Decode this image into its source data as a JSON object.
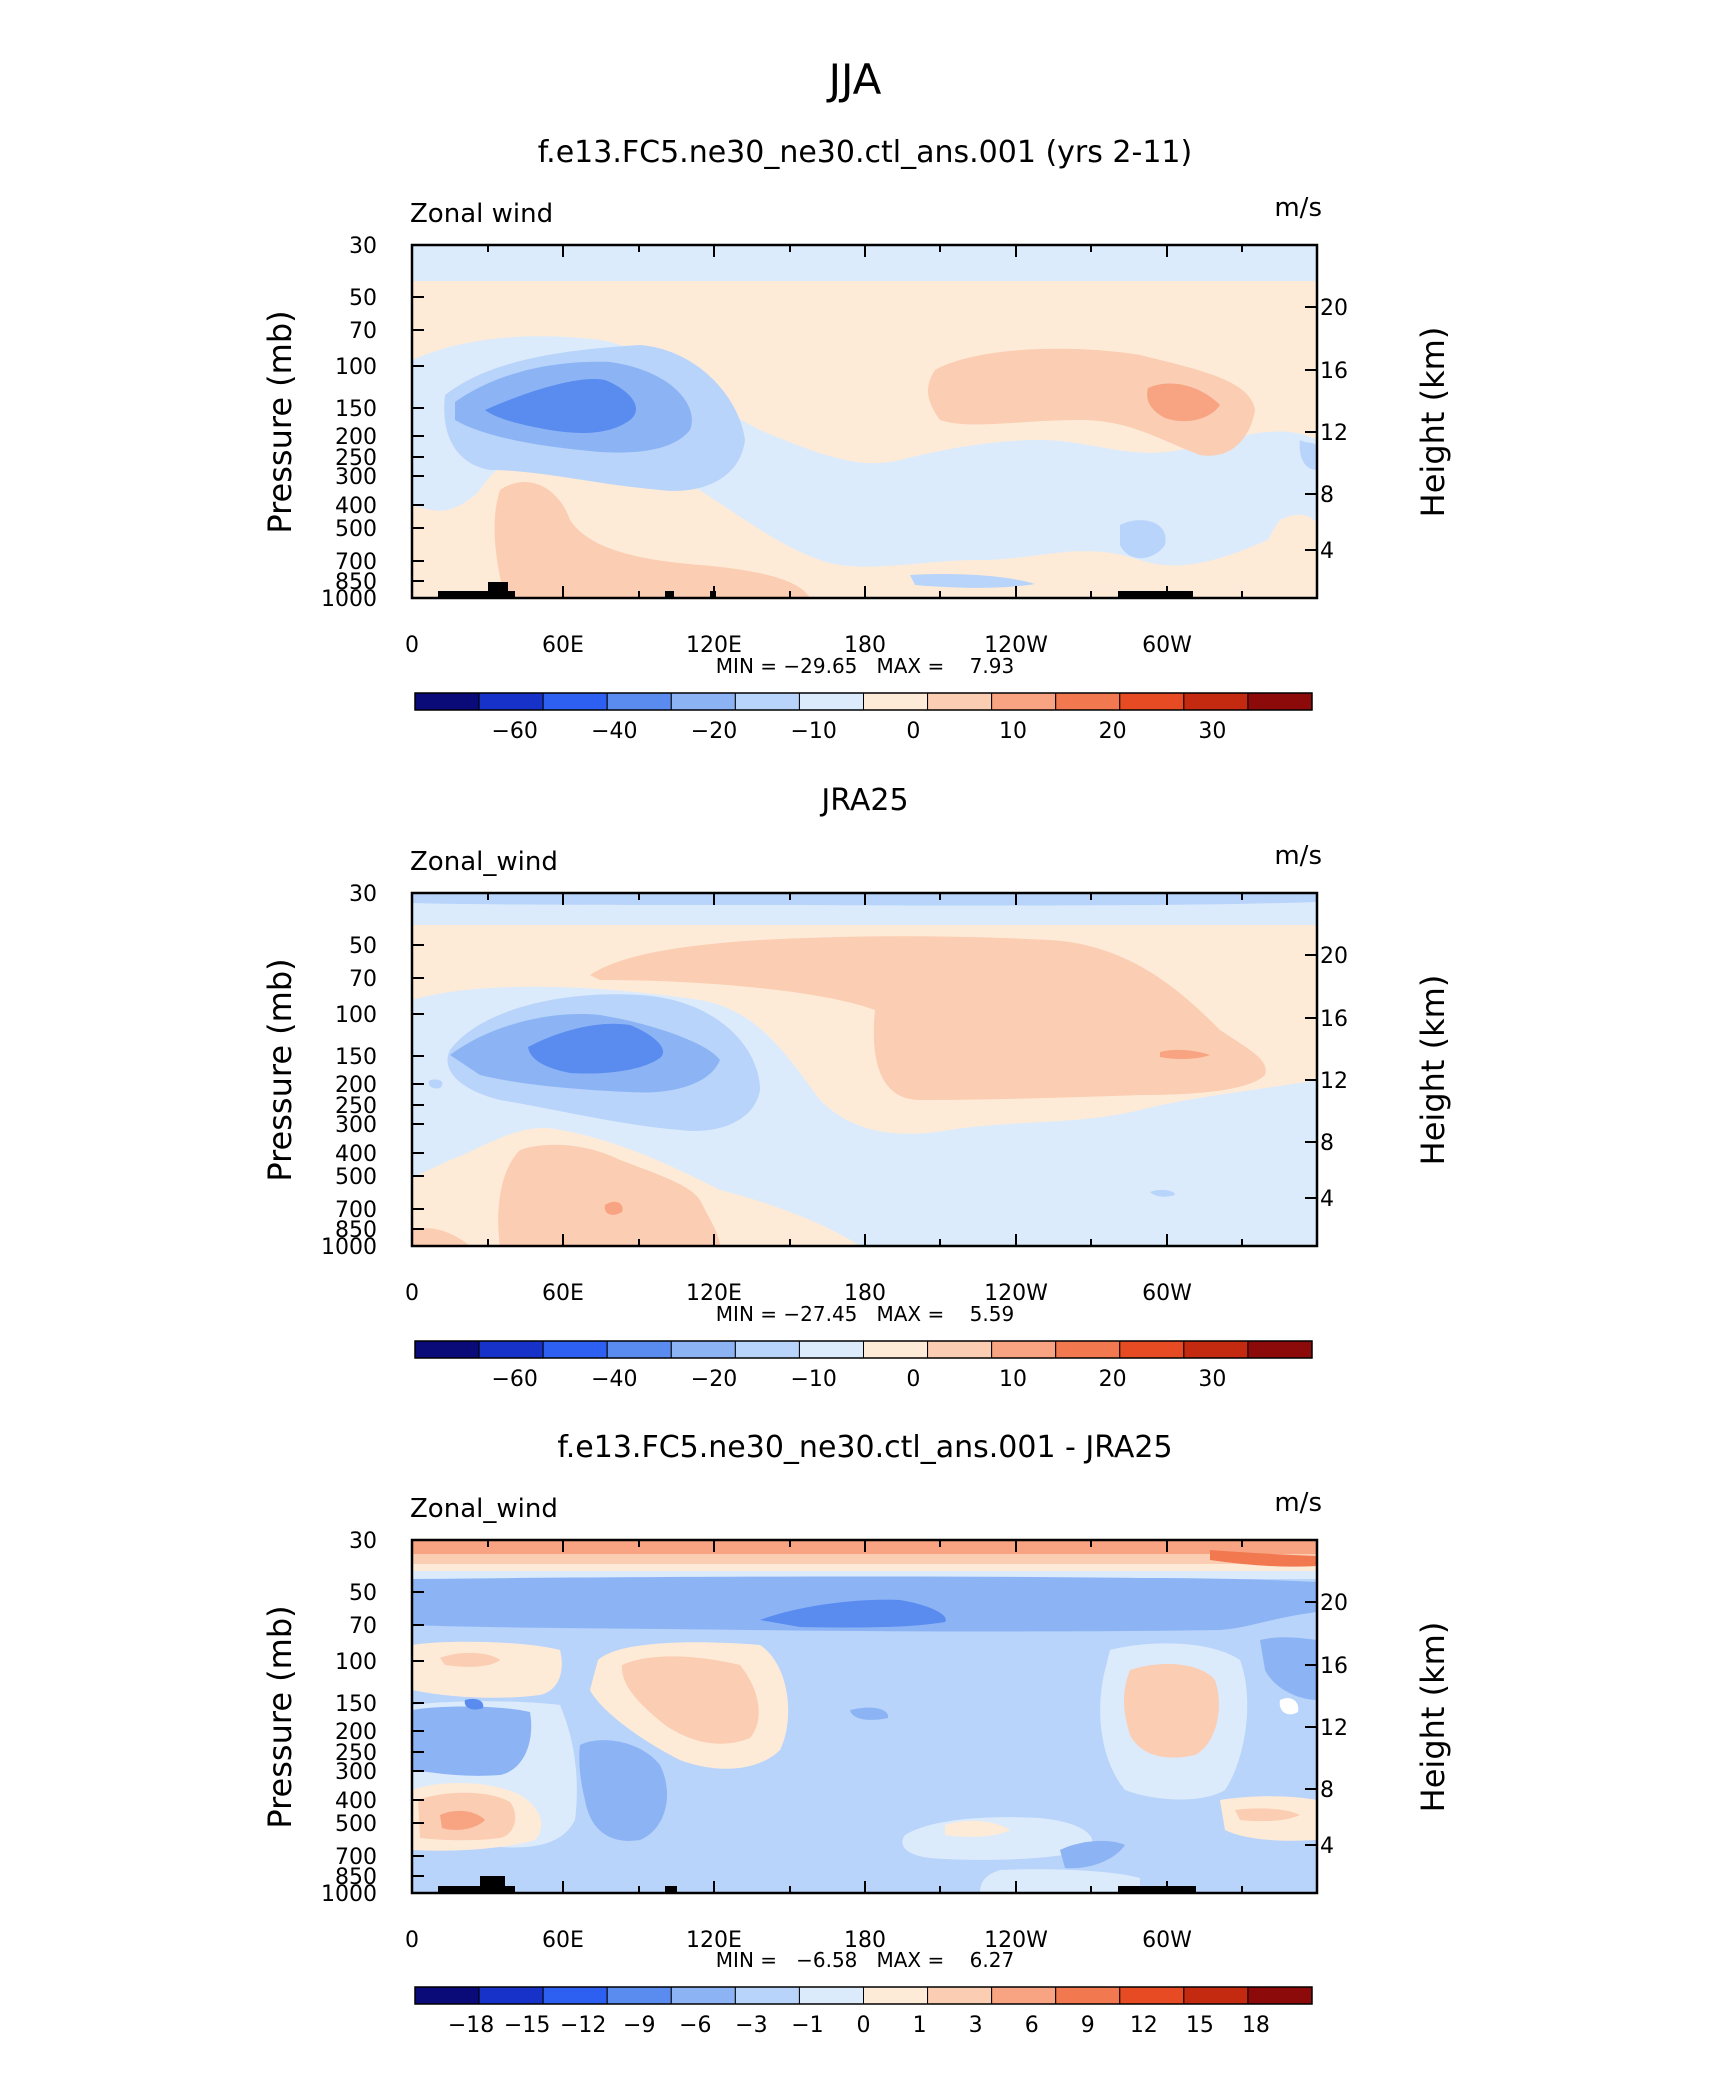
{
  "figure": {
    "title": "JJA"
  },
  "chart_data": [
    {
      "type": "heatmap",
      "title": "f.e13.FC5.ne30_ne30.ctl_ans.001 (yrs 2-11)",
      "variable_label": "Zonal wind",
      "units_label": "m/s",
      "ylabel": "Pressure (mb)",
      "ylabel_right": "Height (km)",
      "x_ticks": [
        "0",
        "60E",
        "120E",
        "180",
        "120W",
        "60W"
      ],
      "y_ticks": [
        "30",
        "50",
        "70",
        "100",
        "150",
        "200",
        "250",
        "300",
        "400",
        "500",
        "700",
        "850",
        "1000"
      ],
      "y_ticks_right": [
        "20",
        "16",
        "12",
        "8",
        "4"
      ],
      "stats": "MIN = −29.65   MAX =    7.93",
      "colorbar_labels": [
        "−60",
        "−40",
        "−20",
        "−10",
        "0",
        "10",
        "20",
        "30"
      ],
      "field_range": [
        -29.65,
        7.93
      ]
    },
    {
      "type": "heatmap",
      "title": "JRA25",
      "variable_label": "Zonal_wind",
      "units_label": "m/s",
      "ylabel": "Pressure (mb)",
      "ylabel_right": "Height (km)",
      "x_ticks": [
        "0",
        "60E",
        "120E",
        "180",
        "120W",
        "60W"
      ],
      "y_ticks": [
        "30",
        "50",
        "70",
        "100",
        "150",
        "200",
        "250",
        "300",
        "400",
        "500",
        "700",
        "850",
        "1000"
      ],
      "y_ticks_right": [
        "20",
        "16",
        "12",
        "8",
        "4"
      ],
      "stats": "MIN = −27.45   MAX =    5.59",
      "colorbar_labels": [
        "−60",
        "−40",
        "−20",
        "−10",
        "0",
        "10",
        "20",
        "30"
      ],
      "field_range": [
        -27.45,
        5.59
      ]
    },
    {
      "type": "heatmap",
      "title": "f.e13.FC5.ne30_ne30.ctl_ans.001 - JRA25",
      "variable_label": "Zonal_wind",
      "units_label": "m/s",
      "ylabel": "Pressure (mb)",
      "ylabel_right": "Height (km)",
      "x_ticks": [
        "0",
        "60E",
        "120E",
        "180",
        "120W",
        "60W"
      ],
      "y_ticks": [
        "30",
        "50",
        "70",
        "100",
        "150",
        "200",
        "250",
        "300",
        "400",
        "500",
        "700",
        "850",
        "1000"
      ],
      "y_ticks_right": [
        "20",
        "16",
        "12",
        "8",
        "4"
      ],
      "stats": "MIN =   −6.58   MAX =    6.27",
      "colorbar_labels": [
        "−18",
        "−15",
        "−12",
        "−9",
        "−6",
        "−3",
        "−1",
        "0",
        "1",
        "3",
        "6",
        "9",
        "12",
        "15",
        "18"
      ],
      "field_range": [
        -6.58,
        6.27
      ]
    }
  ],
  "colors": {
    "colorbar": [
      "#0a0a78",
      "#1732c8",
      "#2d5ff0",
      "#5a8cf0",
      "#8cb4f5",
      "#b9d4fa",
      "#dcebfc",
      "#fdebd8",
      "#fbcdb2",
      "#f8a382",
      "#f27850",
      "#e64b23",
      "#c42a10",
      "#8c0a0a"
    ]
  }
}
